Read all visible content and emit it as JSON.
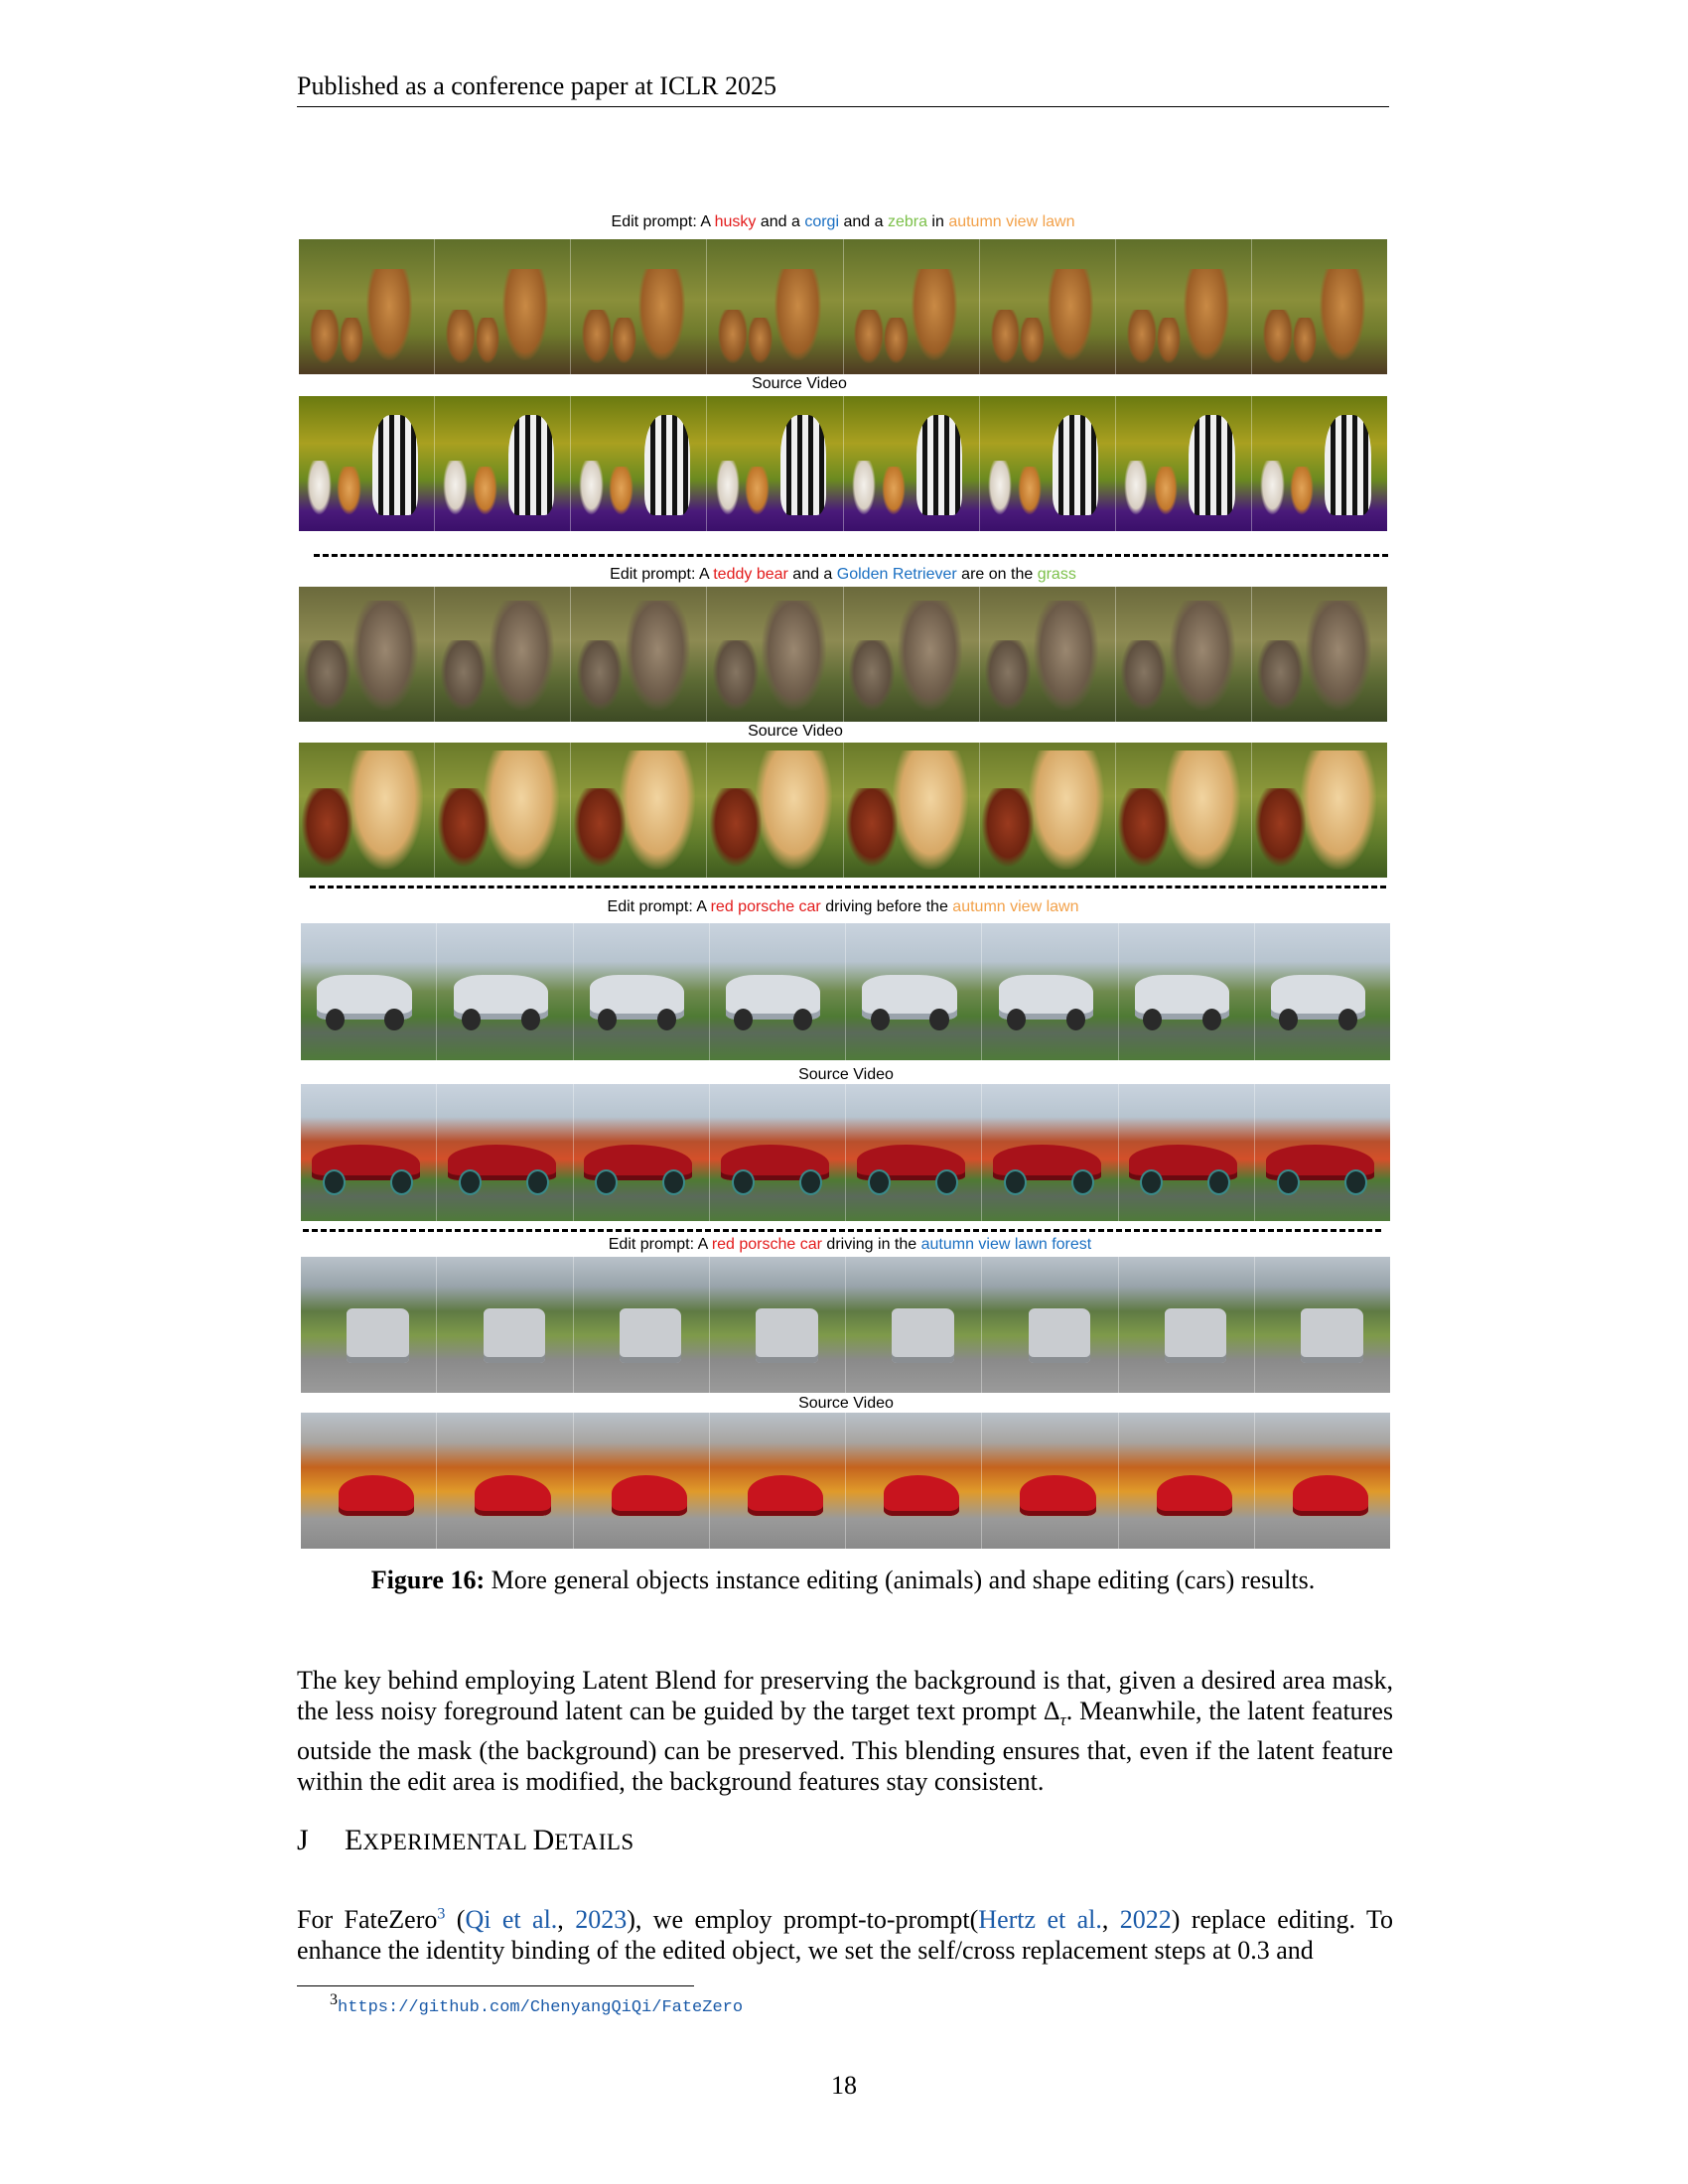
{
  "header": {
    "text": "Published as a conference paper at ICLR 2025"
  },
  "figure": {
    "groups": [
      {
        "prompt": {
          "prefix": "Edit prompt:  A ",
          "w1": "husky",
          "t1": " and a ",
          "w2": "corgi",
          "t2": " and a ",
          "w3": "zebra",
          "t3": " in ",
          "w4": "autumn view lawn"
        },
        "source_label": "Source Video"
      },
      {
        "prompt": {
          "prefix": "Edit prompt:  A ",
          "w1": "teddy bear",
          "t1": " and a ",
          "w2": "Golden Retriever",
          "t2": " are on the ",
          "w3": "grass"
        },
        "source_label": "Source Video"
      },
      {
        "prompt": {
          "prefix": "Edit prompt: A ",
          "w1": "red porsche car",
          "t1": " driving before the ",
          "w2": "autumn view lawn"
        },
        "source_label": "Source Video"
      },
      {
        "prompt": {
          "prefix": "Edit prompt: A ",
          "w1": "red porsche car",
          "t1": " driving in the ",
          "w2": "autumn view lawn forest"
        },
        "source_label": "Source Video"
      }
    ],
    "colors": {
      "red": "#e31b1b",
      "blue": "#1a6fc2",
      "green": "#7cc04a",
      "orange": "#f2a14a"
    },
    "caption": {
      "label": "Figure 16:",
      "text": " More general objects instance editing (animals) and shape editing (cars) results."
    }
  },
  "body": {
    "para1": {
      "text_a": "The key behind employing Latent Blend for preserving the background is that, given a desired area mask, the less noisy foreground latent can be guided by the target text prompt ",
      "math": "Δ",
      "math_sub": "τ",
      "text_b": ". Meanwhile, the latent features outside the mask (the background) can be preserved. This blending ensures that, even if the latent feature within the edit area is modified, the background features stay consistent."
    },
    "section": {
      "number": "J",
      "title_first": "E",
      "title_rest1": "XPERIMENTAL ",
      "title_second": "D",
      "title_rest2": "ETAILS"
    },
    "para2": {
      "t1": "For FateZero",
      "fn_mark": "3",
      "t2": " (",
      "cite1_name": "Qi et al.",
      "t3": ", ",
      "cite1_year": "2023",
      "t4": "), we employ prompt-to-prompt(",
      "cite2_name": "Hertz et al.",
      "t5": ", ",
      "cite2_year": "2022",
      "t6": ") replace editing. To enhance the identity binding of the edited object, we set the self/cross replacement steps at 0.3 and"
    }
  },
  "footnote": {
    "mark": "3",
    "url": "https://github.com/ChenyangQiQi/FateZero"
  },
  "page_number": "18"
}
